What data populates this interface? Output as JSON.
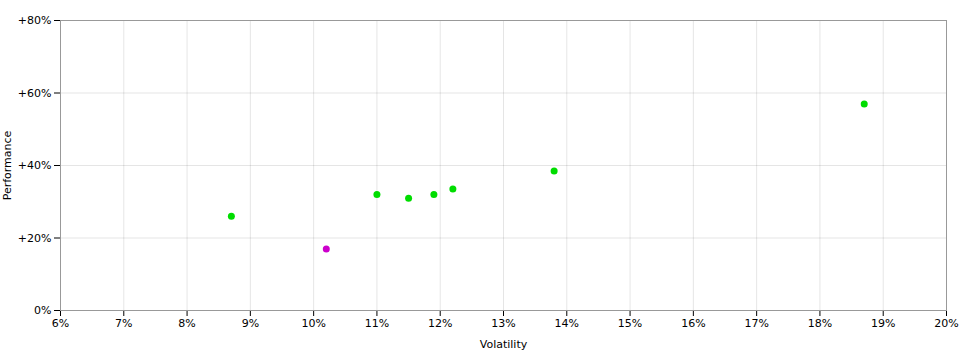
{
  "chart_data": {
    "type": "scatter",
    "xlabel": "Volatility",
    "ylabel": "Performance",
    "x": [
      0.087,
      0.102,
      0.11,
      0.115,
      0.119,
      0.122,
      0.138,
      0.187
    ],
    "values": [
      0.26,
      0.17,
      0.32,
      0.31,
      0.32,
      0.335,
      0.385,
      0.57
    ],
    "colors": [
      "#00dd00",
      "#cc00cc",
      "#00dd00",
      "#00dd00",
      "#00dd00",
      "#00dd00",
      "#00dd00",
      "#00dd00"
    ],
    "marker": "circle",
    "xlim": [
      0.06,
      0.2
    ],
    "ylim": [
      0.0,
      0.8
    ],
    "xticks": [
      {
        "value": 0.06,
        "label": "6%"
      },
      {
        "value": 0.07,
        "label": "7%"
      },
      {
        "value": 0.08,
        "label": "8%"
      },
      {
        "value": 0.09,
        "label": "9%"
      },
      {
        "value": 0.1,
        "label": "10%"
      },
      {
        "value": 0.11,
        "label": "11%"
      },
      {
        "value": 0.12,
        "label": "12%"
      },
      {
        "value": 0.13,
        "label": "13%"
      },
      {
        "value": 0.14,
        "label": "14%"
      },
      {
        "value": 0.15,
        "label": "15%"
      },
      {
        "value": 0.16,
        "label": "16%"
      },
      {
        "value": 0.17,
        "label": "17%"
      },
      {
        "value": 0.18,
        "label": "18%"
      },
      {
        "value": 0.19,
        "label": "19%"
      },
      {
        "value": 0.2,
        "label": "20%"
      }
    ],
    "yticks": [
      {
        "value": 0.0,
        "label": "0%"
      },
      {
        "value": 0.2,
        "label": "+20%"
      },
      {
        "value": 0.4,
        "label": "+40%"
      },
      {
        "value": 0.6,
        "label": "+60%"
      },
      {
        "value": 0.8,
        "label": "+80%"
      }
    ],
    "grid": true
  }
}
